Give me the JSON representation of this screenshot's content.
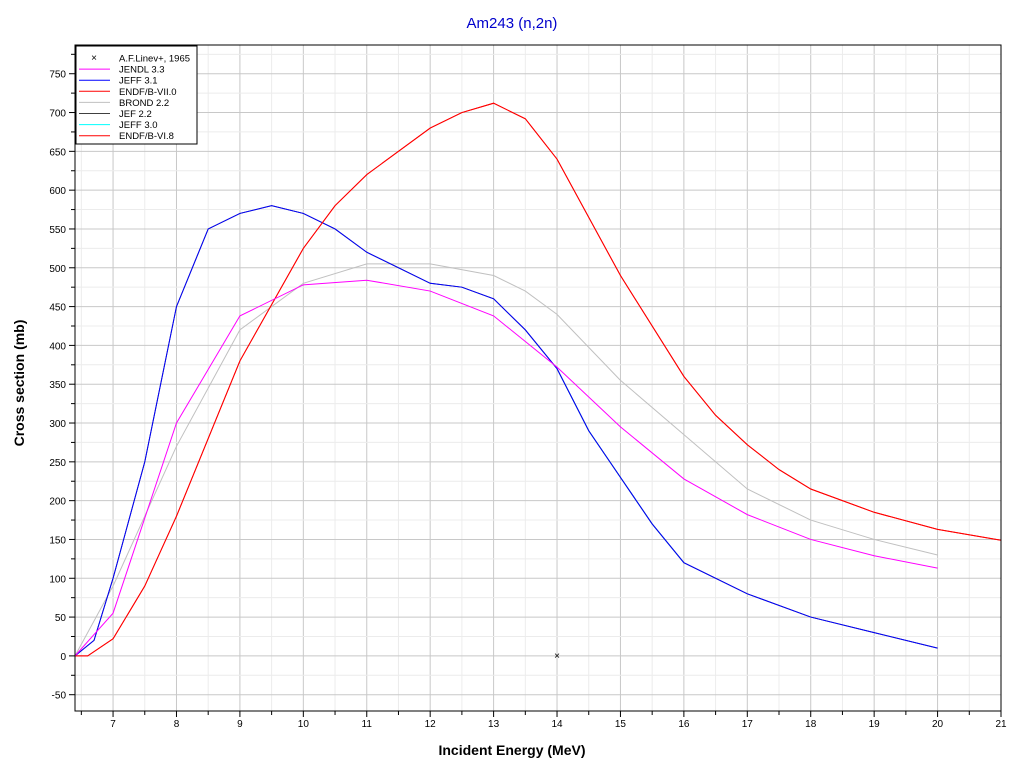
{
  "chart_data": {
    "type": "line",
    "title": "Am243 (n,2n)",
    "xlabel": "Incident Energy (MeV)",
    "ylabel": "Cross section (mb)",
    "xlim": [
      6.4,
      21
    ],
    "ylim": [
      -71,
      787
    ],
    "xticks": [
      7,
      8,
      9,
      10,
      11,
      12,
      13,
      14,
      15,
      16,
      17,
      18,
      19,
      20,
      21
    ],
    "yticks": [
      -50,
      0,
      50,
      100,
      150,
      200,
      250,
      300,
      350,
      400,
      450,
      500,
      550,
      600,
      650,
      700,
      750
    ],
    "grid": true,
    "legend_position": "top-left",
    "series": [
      {
        "name": "A.F.Linev+, 1965",
        "color": "#000000",
        "marker": "x",
        "x": [
          14
        ],
        "y": [
          0
        ]
      },
      {
        "name": "JENDL 3.3",
        "color": "#ff00ff",
        "x": [
          6.4,
          7,
          8,
          9,
          10,
          11,
          12,
          13,
          14,
          15,
          16,
          17,
          18,
          19,
          20
        ],
        "y": [
          0,
          55,
          300,
          438,
          478,
          484,
          470,
          438,
          372,
          295,
          228,
          182,
          150,
          129,
          113
        ]
      },
      {
        "name": "JEFF 3.1",
        "color": "#0000ff",
        "x": [
          6.4,
          6.7,
          7,
          7.5,
          8,
          8.5,
          9,
          9.5,
          10,
          10.5,
          11,
          12,
          12.5,
          13,
          13.5,
          14,
          14.5,
          15,
          15.5,
          16,
          17,
          18,
          19,
          20
        ],
        "y": [
          0,
          20,
          100,
          250,
          450,
          550,
          570,
          580,
          570,
          550,
          520,
          480,
          475,
          460,
          420,
          370,
          290,
          230,
          170,
          120,
          80,
          50,
          30,
          10
        ]
      },
      {
        "name": "ENDF/B-VII.0",
        "color": "#ff0000",
        "x": [
          6.4,
          6.6,
          7,
          7.5,
          8,
          9,
          10,
          10.5,
          11,
          12,
          12.5,
          13,
          13.5,
          14,
          15,
          16,
          16.5,
          17,
          17.5,
          18,
          19,
          20,
          21
        ],
        "y": [
          0,
          0,
          22,
          90,
          180,
          380,
          525,
          580,
          620,
          680,
          700,
          712,
          692,
          640,
          490,
          360,
          310,
          272,
          240,
          215,
          185,
          163,
          149
        ]
      },
      {
        "name": "BROND 2.2",
        "color": "#c0c0c0",
        "x": [
          6.4,
          7,
          8,
          9,
          10,
          11,
          12,
          13,
          13.5,
          14,
          15,
          16,
          17,
          18,
          19,
          20
        ],
        "y": [
          0,
          90,
          270,
          420,
          480,
          505,
          505,
          490,
          470,
          440,
          355,
          285,
          215,
          175,
          150,
          130
        ]
      },
      {
        "name": "JEF 2.2",
        "color": "#404040",
        "x": [
          6.4,
          6.7,
          7,
          7.5,
          8,
          8.5,
          9,
          9.5,
          10,
          10.5,
          11,
          12,
          12.5,
          13,
          13.5,
          14,
          14.5,
          15,
          15.5,
          16,
          17,
          18,
          19,
          20
        ],
        "y": [
          0,
          20,
          100,
          250,
          450,
          550,
          570,
          580,
          570,
          550,
          520,
          480,
          475,
          460,
          420,
          370,
          290,
          230,
          170,
          120,
          80,
          50,
          30,
          10
        ]
      },
      {
        "name": "JEFF 3.0",
        "color": "#00ffff",
        "x": [
          14,
          14.5,
          15,
          15.5,
          16
        ],
        "y": [
          370,
          290,
          230,
          170,
          120
        ]
      },
      {
        "name": "ENDF/B-VI.8",
        "color": "#ff0000",
        "x": [
          6.4,
          6.6,
          7,
          7.5,
          8,
          9,
          10,
          10.5,
          11,
          12,
          12.5,
          13,
          13.5,
          14,
          15,
          16,
          16.5,
          17,
          17.5,
          18,
          19,
          20,
          21
        ],
        "y": [
          0,
          0,
          22,
          90,
          180,
          380,
          525,
          580,
          620,
          680,
          700,
          712,
          692,
          640,
          490,
          360,
          310,
          272,
          240,
          215,
          185,
          163,
          149
        ]
      }
    ]
  }
}
